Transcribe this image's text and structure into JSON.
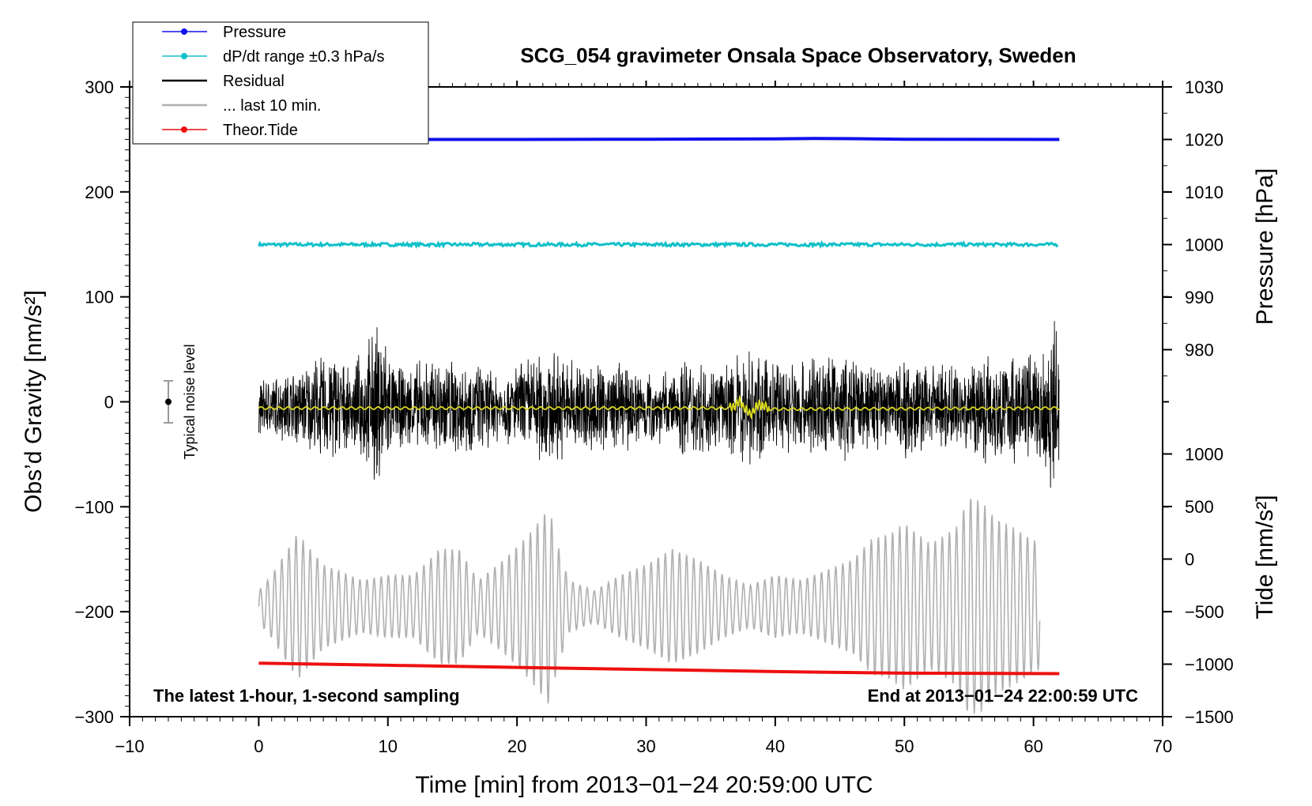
{
  "chart_data": {
    "type": "line",
    "title": "SCG_054 gravimeter Onsala Space Observatory, Sweden",
    "xlabel": "Time [min] from 2013−01−24 20:59:00 UTC",
    "ylabel_left": "Obs’d Gravity [nm/s²]",
    "ylabel_right_top": "Pressure [hPa]",
    "ylabel_right_bottom": "Tide [nm/s²]",
    "xlim": [
      -10,
      70
    ],
    "ylim": [
      -300,
      300
    ],
    "x_ticks": [
      -10,
      0,
      10,
      20,
      30,
      40,
      50,
      60,
      70
    ],
    "x_tick_labels": [
      "−10",
      "0",
      "10",
      "20",
      "30",
      "40",
      "50",
      "60",
      "70"
    ],
    "y_ticks": [
      -300,
      -200,
      -100,
      0,
      100,
      200,
      300
    ],
    "y_tick_labels": [
      "−300",
      "−200",
      "−100",
      "0",
      "100",
      "200",
      "300"
    ],
    "pressure_axis": {
      "range": [
        970,
        1030
      ],
      "ticks": [
        980,
        990,
        1000,
        1010,
        1020,
        1030
      ],
      "tick_labels": [
        "980",
        "990",
        "1000",
        "1010",
        "1020",
        "1030"
      ]
    },
    "tide_axis": {
      "range": [
        -1500,
        1500
      ],
      "ticks": [
        -1500,
        -1000,
        -500,
        0,
        500,
        1000
      ],
      "tick_labels": [
        "−1500",
        "−1000",
        "−500",
        "0",
        "500",
        "1000"
      ]
    },
    "legend_position": "top-left",
    "legend": [
      {
        "label": "Pressure",
        "color": "#1010ee",
        "marker": true
      },
      {
        "label": "dP/dt range ±0.3 hPa/s",
        "color": "#10c0c8",
        "marker": true
      },
      {
        "label": "Residual",
        "color": "#000000",
        "marker": false
      },
      {
        "label": "... last 10 min.",
        "color": "#b0b0b0",
        "marker": false
      },
      {
        "label": "Theor.Tide",
        "color": "#ee1010",
        "marker": true
      }
    ],
    "series": [
      {
        "name": "Pressure",
        "axis": "pressure",
        "color": "#1010ee",
        "x": [
          0,
          10,
          20,
          30,
          40,
          43,
          46,
          50,
          62
        ],
        "y": [
          1020,
          1020,
          1020,
          1020.05,
          1020.1,
          1020.2,
          1020.15,
          1020.05,
          1020
        ]
      },
      {
        "name": "dP/dt range ±0.3 hPa/s",
        "axis": "pressure",
        "color": "#10c0c8",
        "x": [
          0,
          62
        ],
        "y": [
          1000,
          1000
        ],
        "band": 0.3
      },
      {
        "name": "Residual",
        "axis": "gravity",
        "color": "#000000",
        "x": [
          0,
          62
        ],
        "y_range": [
          -110,
          95
        ],
        "peak_amplitude": [
          [
            0,
            28
          ],
          [
            3,
            40
          ],
          [
            5,
            55
          ],
          [
            6,
            62
          ],
          [
            7,
            35
          ],
          [
            9.5,
            95
          ],
          [
            10.5,
            40
          ],
          [
            12,
            45
          ],
          [
            14,
            55
          ],
          [
            16,
            50
          ],
          [
            19,
            35
          ],
          [
            21,
            55
          ],
          [
            22,
            60
          ],
          [
            25,
            50
          ],
          [
            28,
            45
          ],
          [
            32,
            35
          ],
          [
            33,
            55
          ],
          [
            36,
            40
          ],
          [
            38,
            65
          ],
          [
            39,
            50
          ],
          [
            41,
            50
          ],
          [
            43,
            55
          ],
          [
            46,
            55
          ],
          [
            47,
            45
          ],
          [
            50,
            55
          ],
          [
            52,
            45
          ],
          [
            53,
            45
          ],
          [
            55,
            50
          ],
          [
            57,
            60
          ],
          [
            60,
            55
          ],
          [
            61.5,
            95
          ],
          [
            62,
            70
          ]
        ]
      },
      {
        "name": "Residual smoothed",
        "axis": "gravity",
        "color": "#d8d820",
        "x": [
          0,
          36.5,
          37.3,
          38,
          38.8,
          39.5,
          62
        ],
        "y": [
          -6,
          -6,
          0,
          -12,
          -2,
          -7,
          -6
        ]
      },
      {
        "name": "... last 10 min.",
        "axis": "gravity",
        "color": "#b0b0b0",
        "x": [
          0,
          60.5
        ],
        "center": -195,
        "envelope": [
          [
            0,
            15
          ],
          [
            1,
            30
          ],
          [
            2.5,
            60
          ],
          [
            3,
            70
          ],
          [
            5,
            40
          ],
          [
            8,
            25
          ],
          [
            10,
            30
          ],
          [
            12,
            30
          ],
          [
            14,
            55
          ],
          [
            15.5,
            55
          ],
          [
            17,
            25
          ],
          [
            19,
            45
          ],
          [
            21,
            70
          ],
          [
            22.5,
            95
          ],
          [
            23,
            65
          ],
          [
            24,
            25
          ],
          [
            26,
            15
          ],
          [
            28,
            30
          ],
          [
            30,
            40
          ],
          [
            32,
            55
          ],
          [
            34,
            45
          ],
          [
            36,
            30
          ],
          [
            38,
            20
          ],
          [
            40,
            30
          ],
          [
            42,
            25
          ],
          [
            44,
            35
          ],
          [
            46,
            45
          ],
          [
            47.5,
            65
          ],
          [
            49,
            70
          ],
          [
            50,
            80
          ],
          [
            52,
            60
          ],
          [
            54,
            75
          ],
          [
            55,
            105
          ],
          [
            56,
            100
          ],
          [
            57,
            85
          ],
          [
            58.5,
            75
          ],
          [
            60.5,
            60
          ]
        ]
      },
      {
        "name": "Theor.Tide",
        "axis": "gravity",
        "color": "#ee1010",
        "x": [
          0,
          10,
          20,
          30,
          40,
          50,
          62
        ],
        "y": [
          -249,
          -251,
          -253,
          -255,
          -257,
          -258.5,
          -259
        ]
      }
    ],
    "noise_marker": {
      "label": "Typical noise level",
      "x": -7,
      "y": 0,
      "range": 20
    },
    "annotations": [
      {
        "text": "The latest 1-hour, 1-second sampling",
        "position": "bottom-left"
      },
      {
        "text": "End at 2013−01−24 22:00:59 UTC",
        "position": "bottom-right"
      }
    ]
  }
}
